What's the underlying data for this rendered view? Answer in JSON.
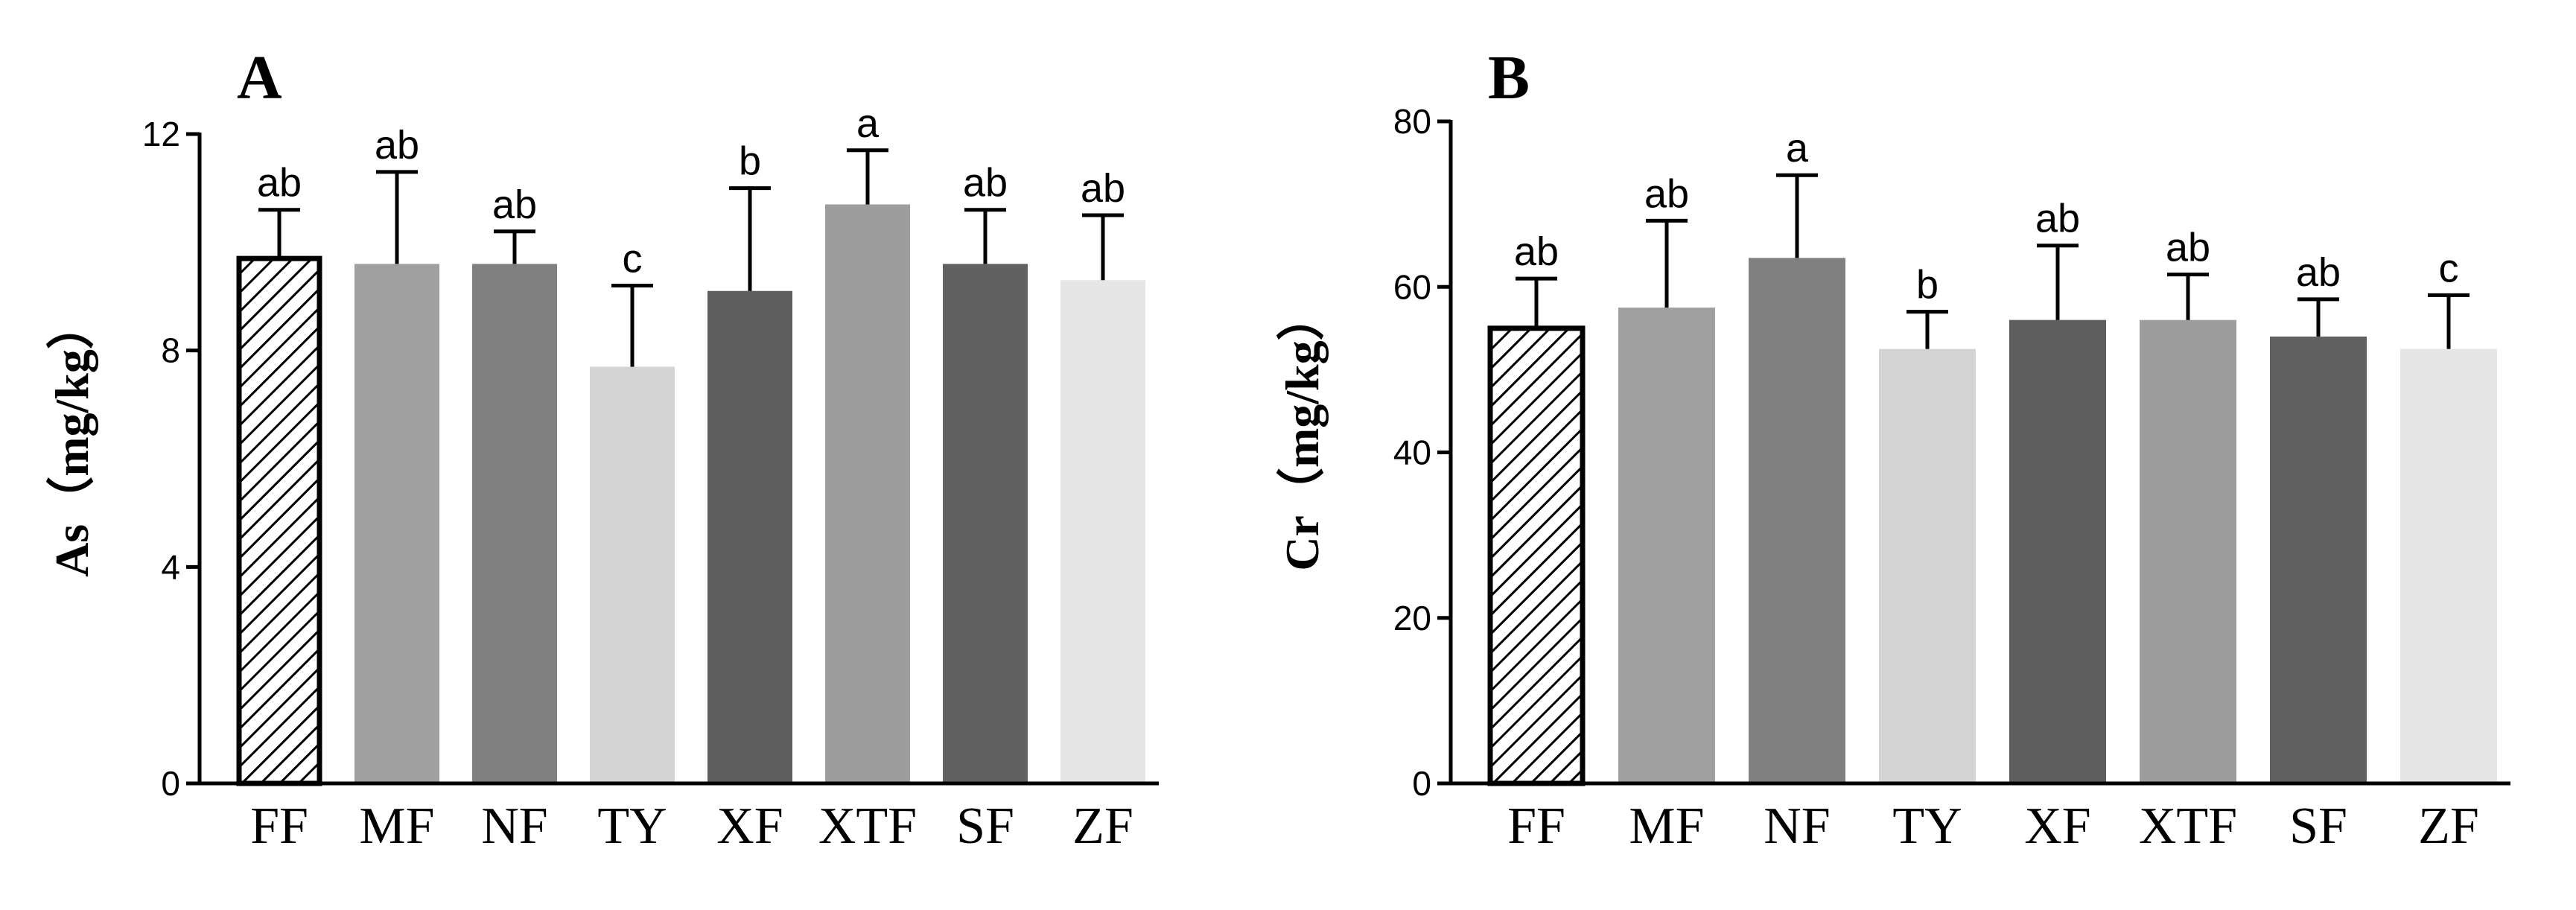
{
  "chart_data": [
    {
      "type": "bar",
      "panel_label": "A",
      "title": "",
      "xlabel": "",
      "ylabel": "As（mg/kg）",
      "ylim": [
        0,
        12
      ],
      "yticks": [
        "0",
        "4",
        "8",
        "12"
      ],
      "ytick_values": [
        0,
        4,
        8,
        12
      ],
      "categories": [
        "FF",
        "MF",
        "NF",
        "TY",
        "XF",
        "XTF",
        "SF",
        "ZF"
      ],
      "values": [
        9.7,
        9.6,
        9.6,
        7.7,
        9.1,
        10.7,
        9.6,
        9.3
      ],
      "error_upper": [
        10.6,
        11.3,
        10.2,
        9.2,
        11.0,
        11.7,
        10.6,
        10.5
      ],
      "significance": [
        "ab",
        "ab",
        "ab",
        "c",
        "b",
        "a",
        "ab",
        "ab"
      ],
      "colors": [
        "hatched",
        "#a0a0a0",
        "#808080",
        "#d4d4d4",
        "#5e5e5e",
        "#9d9d9d",
        "#616161",
        "#e6e6e6"
      ]
    },
    {
      "type": "bar",
      "panel_label": "B",
      "title": "",
      "xlabel": "",
      "ylabel": "Cr（mg/kg）",
      "ylim": [
        0,
        80
      ],
      "yticks": [
        "0",
        "20",
        "40",
        "60",
        "80"
      ],
      "ytick_values": [
        0,
        20,
        40,
        60,
        80
      ],
      "categories": [
        "FF",
        "MF",
        "NF",
        "TY",
        "XF",
        "XTF",
        "SF",
        "ZF"
      ],
      "values": [
        55,
        57.5,
        63.5,
        52.5,
        56,
        56,
        54,
        52.5
      ],
      "error_upper": [
        61,
        68,
        73.5,
        57,
        65,
        61.5,
        58.5,
        59
      ],
      "significance": [
        "ab",
        "ab",
        "a",
        "b",
        "ab",
        "ab",
        "ab",
        "c"
      ],
      "colors": [
        "hatched",
        "#a0a0a0",
        "#808080",
        "#d4d4d4",
        "#5e5e5e",
        "#9d9d9d",
        "#616161",
        "#e6e6e6"
      ]
    }
  ]
}
